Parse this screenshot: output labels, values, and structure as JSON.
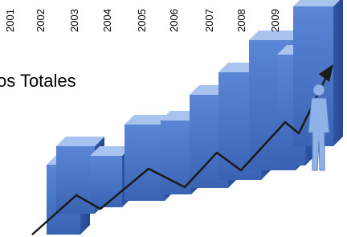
{
  "years": [
    "2001",
    "2002",
    "2003",
    "2004",
    "2005",
    "2006",
    "2007",
    "2008",
    "2009"
  ],
  "caption": "os Totales"
}
